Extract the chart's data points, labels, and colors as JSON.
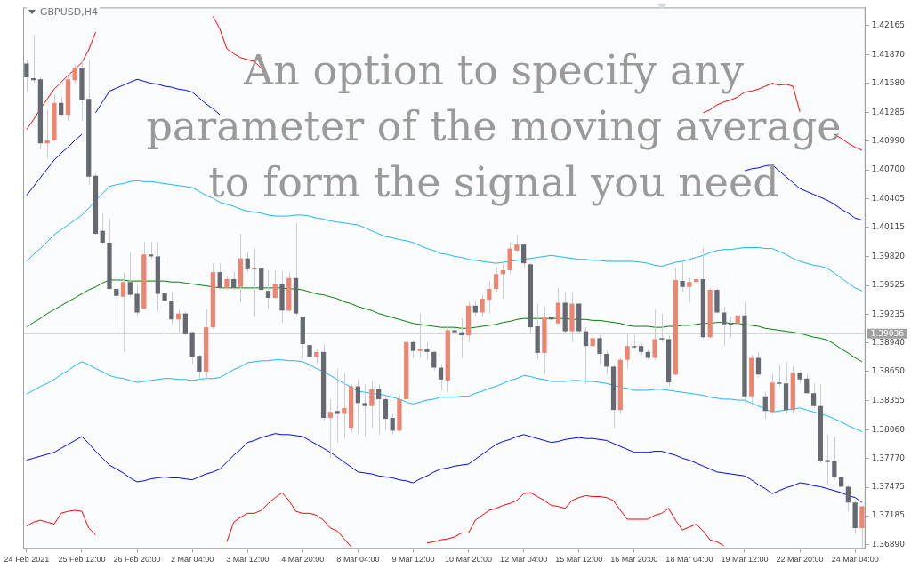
{
  "chart_data": {
    "type": "candlestick",
    "title": "GBPUSD,H4",
    "annotations": [
      "An option to specify any parameter of the moving average to form the signal you need"
    ],
    "categories": [
      "24 Feb 2021",
      null,
      null,
      null,
      null,
      null,
      null,
      null,
      "25 Feb 12:00",
      null,
      null,
      null,
      null,
      null,
      null,
      null,
      "26 Feb 20:00",
      null,
      null,
      null,
      null,
      null,
      null,
      null,
      "2 Mar 04:00",
      null,
      null,
      null,
      null,
      null,
      null,
      null,
      "3 Mar 12:00",
      null,
      null,
      null,
      null,
      null,
      null,
      null,
      "4 Mar 20:00",
      null,
      null,
      null,
      null,
      null,
      null,
      null,
      "8 Mar 04:00",
      null,
      null,
      null,
      null,
      null,
      null,
      null,
      "9 Mar 12:00",
      null,
      null,
      null,
      null,
      null,
      null,
      null,
      "10 Mar 20:00",
      null,
      null,
      null,
      null,
      null,
      null,
      null,
      "12 Mar 04:00",
      null,
      null,
      null,
      null,
      null,
      null,
      null,
      "15 Mar 12:00",
      null,
      null,
      null,
      null,
      null,
      null,
      null,
      "16 Mar 20:00",
      null,
      null,
      null,
      null,
      null,
      null,
      null,
      "18 Mar 04:00",
      null,
      null,
      null,
      null,
      null,
      null,
      null,
      "19 Mar 12:00",
      null,
      null,
      null,
      null,
      null,
      null,
      null,
      "22 Mar 20:00",
      null,
      null,
      null,
      null,
      null,
      null,
      null,
      "24 Mar 04:00",
      null
    ],
    "ylim": [
      1.3685,
      1.4235
    ],
    "yticks": [
      1.42165,
      {
        "value": 1.4187,
        "label": "1.41870"
      },
      {
        "value": 1.4158,
        "label": "1.41580"
      },
      1.41285,
      {
        "value": 1.4099,
        "label": "1.40990"
      },
      {
        "value": 1.407,
        "label": "1.40700"
      },
      1.40405,
      1.40115,
      {
        "value": 1.3982,
        "label": "1.39820"
      },
      1.39525,
      1.39235,
      {
        "value": 1.3894,
        "label": "1.38940"
      },
      {
        "value": 1.3865,
        "label": "1.38650"
      },
      1.38355,
      {
        "value": 1.3806,
        "label": "1.38060"
      },
      {
        "value": 1.3777,
        "label": "1.37770"
      },
      1.37475,
      1.37185,
      {
        "value": 1.3689,
        "label": "1.36890"
      }
    ],
    "grid": false,
    "legend": false,
    "ref_lines": [
      {
        "axis": "y",
        "value": 1.39036,
        "label": "1.39036",
        "color": "#c8c8c8"
      }
    ],
    "series": [
      {
        "type": "line",
        "color": "#ff0000",
        "values": [
          1.4111,
          1.4121,
          1.4132,
          1.4142,
          1.4152,
          1.4159,
          1.4166,
          1.4172,
          1.4179,
          1.4192,
          1.421,
          null,
          null,
          null,
          null,
          null,
          null,
          null,
          null,
          null,
          null,
          null,
          null,
          null,
          null,
          null,
          null,
          1.4226,
          1.4213,
          1.4193,
          1.4188,
          1.4184,
          1.4182,
          1.418,
          1.4173,
          null,
          null,
          null,
          null,
          null,
          null,
          null,
          null,
          null,
          null,
          null,
          null,
          null,
          null,
          null,
          null,
          null,
          null,
          null,
          null,
          null,
          null,
          null,
          null,
          null,
          null,
          null,
          null,
          null,
          null,
          null,
          null,
          null,
          null,
          null,
          null,
          null,
          null,
          null,
          null,
          null,
          null,
          null,
          null,
          null,
          null,
          null,
          null,
          null,
          null,
          null,
          null,
          null,
          null,
          null,
          null,
          null,
          null,
          null,
          null,
          null,
          null,
          null,
          1.4128,
          1.4131,
          1.4136,
          1.4139,
          1.4141,
          1.4144,
          1.4149,
          1.415,
          1.4152,
          1.4155,
          1.4158,
          1.4156,
          1.4157,
          1.4155,
          1.4129,
          null,
          null,
          null,
          null,
          1.4106,
          1.4102,
          1.4097,
          1.4093,
          1.409
        ]
      },
      {
        "type": "line",
        "color": "#0000ff",
        "values": [
          1.4044,
          1.4053,
          1.4062,
          1.4071,
          1.408,
          1.4087,
          1.4093,
          1.41,
          1.4106,
          null,
          1.4128,
          1.4139,
          1.415,
          1.4153,
          1.4156,
          1.4159,
          1.4162,
          1.416,
          1.4158,
          1.4157,
          1.4155,
          1.4154,
          1.4152,
          1.4151,
          1.4149,
          1.4143,
          1.4137,
          1.4132,
          1.4126,
          null,
          null,
          null,
          null,
          null,
          null,
          null,
          null,
          null,
          null,
          null,
          null,
          null,
          null,
          null,
          null,
          null,
          null,
          null,
          null,
          null,
          null,
          null,
          null,
          null,
          null,
          null,
          null,
          null,
          null,
          null,
          null,
          null,
          null,
          null,
          null,
          null,
          null,
          null,
          null,
          null,
          null,
          null,
          null,
          null,
          null,
          null,
          null,
          null,
          null,
          null,
          null,
          null,
          null,
          null,
          null,
          null,
          null,
          null,
          null,
          null,
          null,
          null,
          null,
          null,
          null,
          null,
          null,
          null,
          null,
          null,
          null,
          null,
          null,
          null,
          1.4069,
          1.4071,
          1.4072,
          1.4074,
          1.4075,
          1.4069,
          1.4063,
          1.4057,
          1.4051,
          1.4048,
          1.4045,
          1.4042,
          1.4039,
          1.4035,
          1.403,
          1.4026,
          1.4021,
          1.4019
        ]
      },
      {
        "type": "line",
        "color": "#1eb4ff",
        "values": [
          1.3977,
          1.3984,
          1.399,
          1.3997,
          1.4004,
          1.4009,
          1.4014,
          1.4019,
          1.4024,
          1.4031,
          1.4039,
          1.4046,
          1.4053,
          1.4055,
          1.4056,
          1.4058,
          1.4059,
          1.4058,
          1.4058,
          1.4057,
          1.4056,
          1.4055,
          1.4054,
          1.4053,
          1.4052,
          1.4048,
          1.4044,
          1.4041,
          1.4037,
          1.4035,
          1.4033,
          1.403,
          1.4028,
          1.4027,
          1.4026,
          1.4024,
          1.4023,
          1.4023,
          1.4023,
          1.4024,
          1.4024,
          1.4023,
          1.4021,
          1.402,
          1.4018,
          1.4017,
          1.4016,
          1.4015,
          1.4014,
          1.4011,
          1.4008,
          1.4005,
          1.4002,
          1.4001,
          1.3999,
          1.3998,
          1.3996,
          1.3993,
          1.399,
          1.3988,
          1.3985,
          1.3984,
          1.3982,
          1.3981,
          1.3979,
          1.3978,
          1.3977,
          1.3976,
          1.3975,
          1.3976,
          1.3977,
          1.3978,
          1.3979,
          1.398,
          1.3981,
          1.3982,
          1.3983,
          1.3982,
          1.3981,
          1.398,
          1.3979,
          1.3979,
          1.3978,
          1.3978,
          1.3977,
          1.3977,
          1.3977,
          1.3977,
          1.3977,
          1.3976,
          1.3975,
          1.3973,
          1.3972,
          1.3974,
          1.3976,
          1.3977,
          1.3979,
          1.3981,
          1.3983,
          1.3986,
          1.3988,
          1.3989,
          1.3989,
          1.399,
          1.3991,
          1.3991,
          1.3991,
          1.399,
          1.399,
          1.3987,
          1.3984,
          1.398,
          1.3977,
          1.3975,
          1.3973,
          1.3972,
          1.397,
          1.3965,
          1.396,
          1.3955,
          1.395,
          1.3947
        ]
      },
      {
        "type": "line",
        "color": "#008000",
        "values": [
          1.391,
          1.3915,
          1.3919,
          1.3924,
          1.3928,
          1.3932,
          1.3936,
          1.394,
          1.3944,
          1.3948,
          1.3951,
          1.3955,
          1.3958,
          1.3958,
          1.3958,
          1.3957,
          1.3957,
          1.3957,
          1.3957,
          1.3957,
          1.3957,
          1.3956,
          1.3956,
          1.3955,
          1.3954,
          1.3953,
          1.3952,
          1.3951,
          1.395,
          1.395,
          1.395,
          1.395,
          1.395,
          1.395,
          1.395,
          1.395,
          1.395,
          1.395,
          1.3949,
          1.3949,
          1.3948,
          1.3946,
          1.3944,
          1.3943,
          1.3941,
          1.3939,
          1.3936,
          1.3934,
          1.3931,
          1.3929,
          1.3927,
          1.3924,
          1.3922,
          1.392,
          1.3918,
          1.3916,
          1.3914,
          1.3913,
          1.3912,
          1.3911,
          1.391,
          1.391,
          1.391,
          1.3909,
          1.3909,
          1.391,
          1.3911,
          1.3912,
          1.3913,
          1.3915,
          1.3916,
          1.3918,
          1.3919,
          1.3919,
          1.3919,
          1.3919,
          1.3919,
          1.3919,
          1.3919,
          1.3918,
          1.3918,
          1.3918,
          1.3917,
          1.3917,
          1.3916,
          1.3915,
          1.3914,
          1.3912,
          1.3911,
          1.3911,
          1.3911,
          1.391,
          1.391,
          1.3911,
          1.3911,
          1.3912,
          1.3912,
          1.3913,
          1.3914,
          1.3914,
          1.3915,
          1.3915,
          1.3914,
          1.3914,
          1.3913,
          1.3912,
          1.3911,
          1.3909,
          1.3908,
          1.3907,
          1.3906,
          1.3905,
          1.3904,
          1.3902,
          1.39,
          1.3899,
          1.3897,
          1.3893,
          1.3888,
          1.3884,
          1.3879,
          1.3875
        ]
      },
      {
        "type": "line",
        "color": "#1eb4ff",
        "values": [
          1.3842,
          1.3846,
          1.385,
          1.3853,
          1.3857,
          1.3862,
          1.3866,
          1.3871,
          1.3875,
          1.3872,
          1.3868,
          1.3865,
          1.3861,
          1.3859,
          1.3858,
          1.3856,
          1.3854,
          1.3855,
          1.3856,
          1.3857,
          1.3858,
          1.3858,
          1.3857,
          1.3857,
          1.3856,
          1.3857,
          1.3858,
          1.3858,
          1.3859,
          1.3863,
          1.3867,
          1.387,
          1.3874,
          1.3875,
          1.3876,
          1.3876,
          1.3877,
          1.3877,
          1.3876,
          1.3876,
          1.3875,
          1.3872,
          1.3868,
          1.3865,
          1.3861,
          1.3857,
          1.3853,
          1.3849,
          1.3845,
          1.3844,
          1.3843,
          1.3842,
          1.3841,
          1.3839,
          1.3837,
          1.3834,
          1.3832,
          1.3834,
          1.3836,
          1.3837,
          1.3839,
          1.3839,
          1.3839,
          1.384,
          1.384,
          1.3843,
          1.3845,
          1.3848,
          1.385,
          1.3853,
          1.3856,
          1.3858,
          1.3861,
          1.386,
          1.3858,
          1.3857,
          1.3855,
          1.3855,
          1.3855,
          1.3856,
          1.3856,
          1.3855,
          1.3855,
          1.3854,
          1.3853,
          1.3851,
          1.3849,
          1.3848,
          1.3846,
          1.3846,
          1.3846,
          1.3847,
          1.3847,
          1.3846,
          1.3845,
          1.3844,
          1.3843,
          1.3842,
          1.3841,
          1.3839,
          1.3838,
          1.3837,
          1.3837,
          1.3836,
          1.3836,
          1.3833,
          1.383,
          1.3827,
          1.3824,
          1.3825,
          1.3826,
          1.3827,
          1.3828,
          1.3826,
          1.3824,
          1.3822,
          1.382,
          1.3817,
          1.3814,
          1.381,
          1.3807,
          1.3804
        ]
      },
      {
        "type": "line",
        "color": "#0000ff",
        "values": [
          1.3775,
          1.3777,
          1.3779,
          1.3781,
          1.3783,
          1.3787,
          1.3791,
          1.3795,
          1.3799,
          1.3792,
          1.3784,
          1.3777,
          1.377,
          1.3766,
          1.3762,
          1.3757,
          1.3753,
          1.3754,
          1.3756,
          1.3757,
          1.3758,
          1.3757,
          1.3757,
          1.3756,
          1.3755,
          1.3758,
          1.3761,
          1.3763,
          1.3766,
          1.3773,
          1.378,
          1.3786,
          1.3793,
          1.3795,
          1.3798,
          1.38,
          1.3802,
          1.3801,
          1.3801,
          1.38,
          1.3799,
          1.3795,
          1.3791,
          1.3787,
          1.3783,
          1.3778,
          1.3773,
          1.3768,
          1.3763,
          1.3762,
          1.3761,
          1.3759,
          1.3758,
          1.3757,
          1.3755,
          1.3754,
          1.3752,
          1.3756,
          1.3759,
          1.3763,
          1.3766,
          1.3767,
          1.3769,
          1.377,
          1.3771,
          1.3776,
          1.3781,
          1.3786,
          1.3791,
          1.3794,
          1.3796,
          1.3799,
          1.3801,
          1.3799,
          1.3797,
          1.3795,
          1.3793,
          1.3794,
          1.3796,
          1.3797,
          1.3798,
          1.3797,
          1.3797,
          1.3796,
          1.3795,
          1.3792,
          1.3789,
          1.3786,
          1.3783,
          1.3783,
          1.3783,
          1.3784,
          1.3784,
          1.3782,
          1.378,
          1.3777,
          1.3775,
          1.3772,
          1.3769,
          1.3766,
          1.3763,
          1.3762,
          1.3761,
          1.376,
          1.3759,
          1.3755,
          1.375,
          1.3746,
          1.3741,
          1.3744,
          1.3747,
          1.3749,
          1.3752,
          1.3751,
          1.3749,
          1.3748,
          1.3746,
          1.3744,
          1.3742,
          1.3739,
          1.3737,
          1.3732
        ]
      },
      {
        "type": "line",
        "color": "#ff0000",
        "values": [
          1.3708,
          1.3712,
          1.3714,
          1.3712,
          1.371,
          1.3721,
          1.3723,
          1.3724,
          1.3723,
          1.3706,
          1.3699,
          null,
          null,
          null,
          null,
          null,
          null,
          null,
          null,
          null,
          null,
          null,
          null,
          null,
          null,
          null,
          null,
          null,
          null,
          1.3692,
          1.3712,
          1.3717,
          1.3721,
          1.3721,
          1.3724,
          1.3731,
          1.3737,
          1.3742,
          1.3734,
          1.3723,
          1.3721,
          1.3721,
          1.3719,
          1.3714,
          1.3706,
          1.3703,
          1.3695,
          1.3687,
          null,
          null,
          null,
          null,
          null,
          null,
          null,
          null,
          null,
          null,
          1.3691,
          1.3692,
          1.3694,
          1.3695,
          1.3697,
          1.3701,
          1.3701,
          1.3714,
          1.3719,
          1.3724,
          1.3726,
          1.3729,
          1.3731,
          1.3734,
          1.3741,
          1.3742,
          1.3738,
          1.3734,
          1.3729,
          1.3728,
          1.3726,
          1.3734,
          1.3737,
          1.3739,
          1.3738,
          1.3738,
          1.3737,
          1.3734,
          1.3724,
          1.3715,
          1.3715,
          1.3715,
          1.3715,
          1.3719,
          1.3721,
          1.3726,
          1.3714,
          1.3704,
          1.3707,
          1.371,
          1.3703,
          1.3694,
          1.3692,
          1.3688,
          null,
          null,
          null,
          null,
          null,
          null,
          null,
          null,
          null,
          null,
          null,
          null,
          null,
          null,
          null,
          null,
          null,
          null,
          null,
          null
        ]
      },
      {
        "colors": [
          "#656a72",
          "#656a72",
          "#656a72",
          "#ec8670",
          "#ec8670",
          "#656a72",
          "#ec8670",
          "#ec8670",
          "#656a72",
          "#656a72",
          "#656a72",
          "#656a72",
          "#656a72",
          "#656a72",
          "#ec8670",
          "#656a72",
          "#656a72",
          "#ec8670",
          "#656a72",
          "#656a72",
          "#656a72",
          "#656a72",
          "#ec8670",
          "#656a72",
          "#656a72",
          "#656a72",
          "#ec8670",
          "#ec8670",
          "#656a72",
          "#ec8670",
          "#656a72",
          "#ec8670",
          "#656a72",
          "#ec8670",
          "#656a72",
          "#656a72",
          "#ec8670",
          "#656a72",
          "#ec8670",
          "#656a72",
          "#656a72",
          "#656a72",
          "#ec8670",
          "#656a72",
          "#ec8670",
          "#656a72",
          "#ec8670",
          "#ec8670",
          "#656a72",
          "#656a72",
          "#ec8670",
          "#656a72",
          "#656a72",
          "#656a72",
          "#ec8670",
          "#ec8670",
          "#656a72",
          "#ec8670",
          "#656a72",
          "#656a72",
          "#656a72",
          "#ec8670",
          "#656a72",
          "#656a72",
          "#ec8670",
          "#656a72",
          "#ec8670",
          "#ec8670",
          "#ec8670",
          "#ec8670",
          "#ec8670",
          "#ec8670",
          "#656a72",
          "#656a72",
          "#656a72",
          "#ec8670",
          "#656a72",
          "#ec8670",
          "#656a72",
          "#ec8670",
          "#656a72",
          "#656a72",
          "#ec8670",
          "#656a72",
          "#656a72",
          "#656a72",
          "#ec8670",
          "#ec8670",
          "#656a72",
          "#656a72",
          "#656a72",
          "#ec8670",
          "#656a72",
          "#656a72",
          "#ec8670",
          "#656a72",
          "#ec8670",
          "#ec8670",
          "#656a72",
          "#ec8670",
          "#656a72",
          "#656a72",
          "#656a72",
          "#ec8670",
          "#656a72",
          "#ec8670",
          "#656a72",
          "#656a72",
          "#ec8670",
          "#656a72",
          "#656a72",
          "#ec8670",
          "#656a72",
          "#656a72",
          "#656a72",
          "#656a72",
          "#656a72",
          "#656a72",
          "#656a72",
          "#656a72",
          "#656a72",
          "#ec8670"
        ],
        "ohlc": [
          [
            1.4178,
            1.4182,
            1.4149,
            1.4164
          ],
          [
            1.4163,
            1.4207,
            1.4158,
            1.4161
          ],
          [
            1.4162,
            1.4164,
            1.4091,
            1.4097
          ],
          [
            1.4097,
            1.4131,
            1.4082,
            1.41
          ],
          [
            1.41,
            1.4146,
            1.4099,
            1.4138
          ],
          [
            1.4138,
            1.4144,
            1.4124,
            1.4126
          ],
          [
            1.4126,
            1.4166,
            1.412,
            1.4162
          ],
          [
            1.4161,
            1.4177,
            1.4158,
            1.4174
          ],
          [
            1.4174,
            1.4182,
            1.412,
            1.4141
          ],
          [
            1.4142,
            1.4182,
            1.4055,
            1.4063
          ],
          [
            1.4064,
            1.4066,
            1.4004,
            1.4005
          ],
          [
            1.4008,
            1.4026,
            1.3995,
            1.3996
          ],
          [
            1.3996,
            1.402,
            1.3948,
            1.3949
          ],
          [
            1.3949,
            1.396,
            1.39,
            1.3942
          ],
          [
            1.3941,
            1.3966,
            1.3886,
            1.3956
          ],
          [
            1.3956,
            1.3986,
            1.3941,
            1.3943
          ],
          [
            1.3944,
            1.3953,
            1.3922,
            1.3925
          ],
          [
            1.3929,
            1.3997,
            1.3928,
            1.3984
          ],
          [
            1.3984,
            1.3997,
            1.3979,
            1.3982
          ],
          [
            1.3982,
            1.3997,
            1.3926,
            1.3944
          ],
          [
            1.3945,
            1.3977,
            1.3904,
            1.3937
          ],
          [
            1.3937,
            1.3946,
            1.3913,
            1.3918
          ],
          [
            1.3918,
            1.3928,
            1.3904,
            1.3924
          ],
          [
            1.3924,
            1.3926,
            1.3902,
            1.3903
          ],
          [
            1.3905,
            1.3906,
            1.3873,
            1.388
          ],
          [
            1.3881,
            1.3882,
            1.3857,
            1.3865
          ],
          [
            1.3865,
            1.3928,
            1.3857,
            1.391
          ],
          [
            1.391,
            1.3975,
            1.3908,
            1.3966
          ],
          [
            1.3966,
            1.3975,
            1.3948,
            1.395
          ],
          [
            1.395,
            1.3962,
            1.3948,
            1.3959
          ],
          [
            1.3959,
            1.3966,
            1.3948,
            1.395
          ],
          [
            1.3951,
            1.4005,
            1.3935,
            1.398
          ],
          [
            1.398,
            1.3987,
            1.3966,
            1.3969
          ],
          [
            1.3969,
            1.399,
            1.3921,
            1.397
          ],
          [
            1.397,
            1.3982,
            1.3946,
            1.3948
          ],
          [
            1.3947,
            1.3968,
            1.3929,
            1.394
          ],
          [
            1.394,
            1.3968,
            1.3939,
            1.3954
          ],
          [
            1.3954,
            1.3967,
            1.3915,
            1.3927
          ],
          [
            1.3927,
            1.3966,
            1.3926,
            1.396
          ],
          [
            1.396,
            1.4016,
            1.3922,
            1.3924
          ],
          [
            1.3921,
            1.3921,
            1.3879,
            1.3893
          ],
          [
            1.3892,
            1.3902,
            1.3866,
            1.388
          ],
          [
            1.388,
            1.3888,
            1.3873,
            1.3885
          ],
          [
            1.3885,
            1.3893,
            1.3815,
            1.3818
          ],
          [
            1.3818,
            1.3837,
            1.3777,
            1.3824
          ],
          [
            1.3825,
            1.3868,
            1.3793,
            1.3822
          ],
          [
            1.3822,
            1.3864,
            1.3797,
            1.3828
          ],
          [
            1.3808,
            1.3852,
            1.3804,
            1.385
          ],
          [
            1.385,
            1.3857,
            1.3801,
            1.3833
          ],
          [
            1.3833,
            1.3852,
            1.3799,
            1.383
          ],
          [
            1.383,
            1.3855,
            1.3808,
            1.3847
          ],
          [
            1.3847,
            1.3852,
            1.3801,
            1.3837
          ],
          [
            1.3837,
            1.3842,
            1.3806,
            1.3817
          ],
          [
            1.3818,
            1.3822,
            1.3801,
            1.3805
          ],
          [
            1.3805,
            1.3841,
            1.3804,
            1.3837
          ],
          [
            1.3837,
            1.3897,
            1.3826,
            1.3895
          ],
          [
            1.3895,
            1.3897,
            1.3879,
            1.3886
          ],
          [
            1.3886,
            1.3924,
            1.3879,
            1.3888
          ],
          [
            1.3888,
            1.3895,
            1.3877,
            1.3885
          ],
          [
            1.3885,
            1.3886,
            1.3866,
            1.3869
          ],
          [
            1.3869,
            1.3873,
            1.3846,
            1.3857
          ],
          [
            1.3856,
            1.391,
            1.3844,
            1.3907
          ],
          [
            1.3907,
            1.391,
            1.3853,
            1.3905
          ],
          [
            1.3905,
            1.3919,
            1.3879,
            1.3902
          ],
          [
            1.3902,
            1.3936,
            1.3895,
            1.3932
          ],
          [
            1.3932,
            1.3937,
            1.3921,
            1.3925
          ],
          [
            1.3925,
            1.3944,
            1.3921,
            1.3939
          ],
          [
            1.3938,
            1.3957,
            1.3924,
            1.3949
          ],
          [
            1.3949,
            1.3971,
            1.3946,
            1.3964
          ],
          [
            1.3964,
            1.3974,
            1.3939,
            1.3968
          ],
          [
            1.3968,
            1.3997,
            1.3964,
            1.399
          ],
          [
            1.3988,
            1.4004,
            1.3986,
            1.3994
          ],
          [
            1.3994,
            1.3995,
            1.397,
            1.3975
          ],
          [
            1.3974,
            1.3975,
            1.3904,
            1.391
          ],
          [
            1.3911,
            1.3934,
            1.3877,
            1.3884
          ],
          [
            1.3884,
            1.3931,
            1.3862,
            1.3921
          ],
          [
            1.3921,
            1.3924,
            1.3915,
            1.3918
          ],
          [
            1.3914,
            1.395,
            1.3913,
            1.3935
          ],
          [
            1.3935,
            1.3946,
            1.3904,
            1.3906
          ],
          [
            1.3906,
            1.3946,
            1.3895,
            1.3934
          ],
          [
            1.3934,
            1.3935,
            1.3904,
            1.3906
          ],
          [
            1.3906,
            1.391,
            1.3852,
            1.3891
          ],
          [
            1.3891,
            1.3902,
            1.389,
            1.3899
          ],
          [
            1.3899,
            1.3902,
            1.3873,
            1.3883
          ],
          [
            1.3883,
            1.3886,
            1.3862,
            1.387
          ],
          [
            1.387,
            1.3872,
            1.3808,
            1.3826
          ],
          [
            1.3826,
            1.3879,
            1.3822,
            1.3877
          ],
          [
            1.3877,
            1.3904,
            1.3868,
            1.3891
          ],
          [
            1.3891,
            1.3902,
            1.3888,
            1.389
          ],
          [
            1.3891,
            1.3893,
            1.3882,
            1.3885
          ],
          [
            1.3885,
            1.3888,
            1.3877,
            1.3879
          ],
          [
            1.3879,
            1.3928,
            1.3877,
            1.3898
          ],
          [
            1.3899,
            1.3924,
            1.3895,
            1.3898
          ],
          [
            1.3898,
            1.3902,
            1.385,
            1.3854
          ],
          [
            1.3862,
            1.397,
            1.3861,
            1.3958
          ],
          [
            1.3957,
            1.3977,
            1.3946,
            1.3951
          ],
          [
            1.3951,
            1.396,
            1.3935,
            1.3956
          ],
          [
            1.3956,
            1.4,
            1.3944,
            1.3959
          ],
          [
            1.3959,
            1.3991,
            1.3899,
            1.39
          ],
          [
            1.39,
            1.395,
            1.3899,
            1.3948
          ],
          [
            1.3948,
            1.395,
            1.3924,
            1.3925
          ],
          [
            1.3925,
            1.3931,
            1.3891,
            1.3913
          ],
          [
            1.3914,
            1.3921,
            1.39,
            1.3913
          ],
          [
            1.3914,
            1.3957,
            1.3913,
            1.3922
          ],
          [
            1.3922,
            1.3935,
            1.3833,
            1.384
          ],
          [
            1.384,
            1.3882,
            1.383,
            1.3879
          ],
          [
            1.3879,
            1.3885,
            1.3859,
            1.3862
          ],
          [
            1.384,
            1.3844,
            1.3817,
            1.3825
          ],
          [
            1.3824,
            1.3862,
            1.3822,
            1.3854
          ],
          [
            1.3854,
            1.3872,
            1.385,
            1.3853
          ],
          [
            1.3853,
            1.3875,
            1.3822,
            1.3826
          ],
          [
            1.3826,
            1.387,
            1.3822,
            1.3864
          ],
          [
            1.3864,
            1.3866,
            1.3853,
            1.3857
          ],
          [
            1.3858,
            1.3862,
            1.3842,
            1.3843
          ],
          [
            1.3843,
            1.3853,
            1.3828,
            1.383
          ],
          [
            1.383,
            1.3852,
            1.3772,
            1.3774
          ],
          [
            1.3775,
            1.3801,
            1.375,
            1.3773
          ],
          [
            1.3774,
            1.3799,
            1.3755,
            1.3758
          ],
          [
            1.3758,
            1.3766,
            1.3746,
            1.3748
          ],
          [
            1.3748,
            1.375,
            1.3723,
            1.3732
          ],
          [
            1.3732,
            1.3733,
            1.37,
            1.3706
          ],
          [
            1.3706,
            1.3729,
            1.3685,
            1.3728
          ]
        ]
      }
    ]
  }
}
